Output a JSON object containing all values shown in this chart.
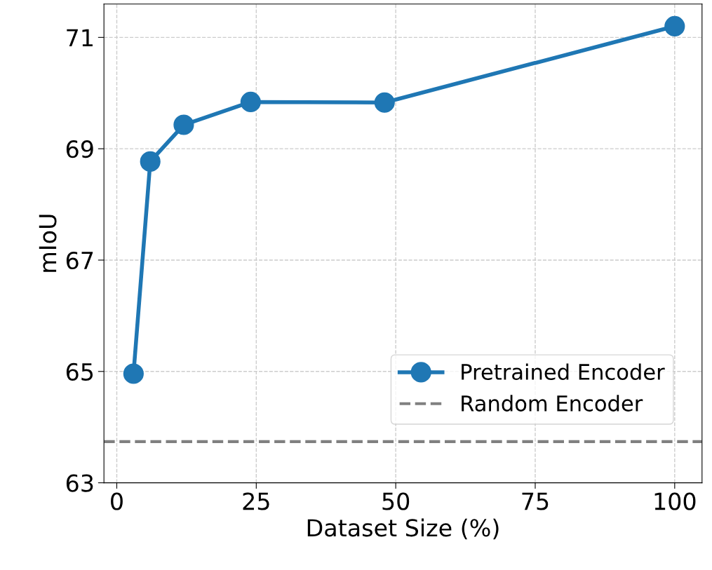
{
  "chart_data": {
    "type": "line",
    "xlabel": "Dataset Size (%)",
    "ylabel": "mIoU",
    "x": [
      3,
      6,
      12,
      24,
      48,
      100
    ],
    "series": [
      {
        "name": "Pretrained Encoder",
        "color": "#1f77b4",
        "values": [
          64.96,
          68.77,
          69.43,
          69.84,
          69.83,
          71.2
        ]
      }
    ],
    "ref_lines": [
      {
        "axis": "y",
        "value": 63.74,
        "label": "Random Encoder",
        "color": "#808080",
        "line_style": "dashed"
      }
    ],
    "xlim": [
      -2.3,
      104.9
    ],
    "ylim": [
      63,
      71.6
    ],
    "xticks": [
      0,
      25,
      50,
      75,
      100
    ],
    "yticks": [
      63,
      65,
      67,
      69,
      71
    ],
    "grid": true,
    "legend": "lower right",
    "marker": "circle",
    "line_style": "solid"
  }
}
